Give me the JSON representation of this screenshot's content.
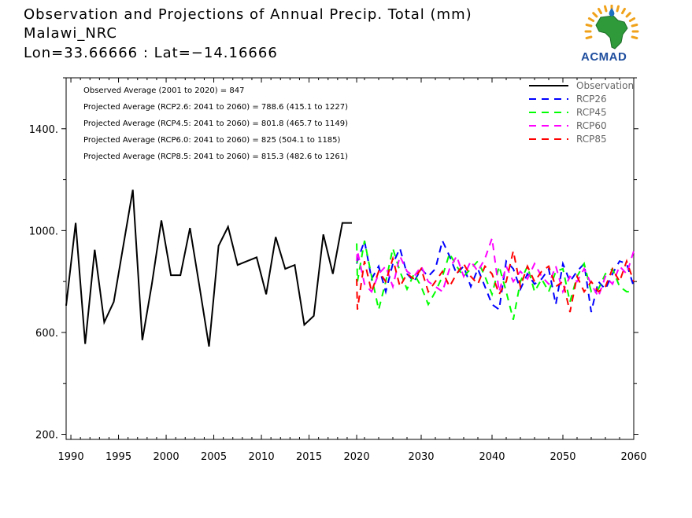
{
  "header": {
    "title": "Observation and Projections of Annual Precip. Total (mm)",
    "subtitle": "Malawi_NRC",
    "coords": "Lon=33.66666 : Lat=−14.16666",
    "logo_text": "ACMAD"
  },
  "chart_data": {
    "type": "line",
    "title": "Observation and Projections of Annual Precip. Total (mm)",
    "xlabel": "",
    "ylabel": "",
    "xlim": [
      1989.5,
      2060
    ],
    "ylim": [
      180,
      1600
    ],
    "yticks": [
      200,
      600,
      1000,
      1400
    ],
    "ytick_labels": [
      "200.",
      "600.",
      "1000.",
      "1400."
    ],
    "xticks_obs": [
      1990,
      1995,
      2000,
      2005,
      2010,
      2015,
      2020
    ],
    "xticks_proj": [
      2030,
      2040,
      2050,
      2060
    ],
    "legend_position": "top-right",
    "annotations": [
      "Observed Average (2001 to 2020) = 847",
      "Projected Average (RCP2.6: 2041 to 2060) = 788.6 (415.1 to 1227)",
      "Projected Average (RCP4.5: 2041 to 2060) = 801.8 (465.7 to 1149)",
      "Projected Average (RCP6.0: 2041 to 2060) = 825 (504.1 to 1185)",
      "Projected Average (RCP8.5: 2041 to 2060) = 815.3 (482.6 to 1261)"
    ],
    "series": [
      {
        "name": "Observation",
        "color": "#000000",
        "dashed": false,
        "x": [
          1989.5,
          1990.5,
          1991.5,
          1992.5,
          1993.5,
          1994.5,
          1995.5,
          1996.5,
          1997.5,
          1998.5,
          1999.5,
          2000.5,
          2001.5,
          2002.5,
          2003.5,
          2004.5,
          2005.5,
          2006.5,
          2007.5,
          2008.5,
          2009.5,
          2010.5,
          2011.5,
          2012.5,
          2013.5,
          2014.5,
          2015.5,
          2016.5,
          2017.5,
          2018.5,
          2019.5
        ],
        "y": [
          705,
          1030,
          555,
          925,
          640,
          720,
          940,
          1160,
          570,
          790,
          1040,
          825,
          825,
          1010,
          780,
          545,
          940,
          1015,
          865,
          880,
          895,
          750,
          975,
          850,
          865,
          630,
          665,
          985,
          830,
          1030,
          1030
        ]
      },
      {
        "name": "RCP26",
        "color": "#0000ff",
        "dashed": true,
        "x": [
          2020,
          2021,
          2022,
          2023,
          2024,
          2025,
          2026,
          2027,
          2028,
          2029,
          2030,
          2031,
          2032,
          2033,
          2034,
          2035,
          2036,
          2037,
          2038,
          2039,
          2040,
          2041,
          2042,
          2043,
          2044,
          2045,
          2046,
          2047,
          2048,
          2049,
          2050,
          2051,
          2052,
          2053,
          2054,
          2055,
          2056,
          2057,
          2058,
          2059,
          2060
        ],
        "y": [
          870,
          880,
          960,
          810,
          860,
          760,
          870,
          930,
          830,
          800,
          850,
          820,
          850,
          960,
          900,
          830,
          860,
          780,
          850,
          780,
          710,
          690,
          880,
          850,
          770,
          830,
          790,
          810,
          850,
          710,
          870,
          800,
          840,
          870,
          680,
          800,
          770,
          830,
          880,
          870,
          780
        ]
      },
      {
        "name": "RCP45",
        "color": "#00ff00",
        "dashed": true,
        "x": [
          2020,
          2021,
          2022,
          2023,
          2024,
          2025,
          2026,
          2027,
          2028,
          2029,
          2030,
          2031,
          2032,
          2033,
          2034,
          2035,
          2036,
          2037,
          2038,
          2039,
          2040,
          2041,
          2042,
          2043,
          2044,
          2045,
          2046,
          2047,
          2048,
          2049,
          2050,
          2051,
          2052,
          2053,
          2054,
          2055,
          2056,
          2057,
          2058,
          2059,
          2060
        ],
        "y": [
          950,
          800,
          960,
          820,
          690,
          800,
          930,
          840,
          770,
          830,
          780,
          710,
          760,
          820,
          910,
          860,
          820,
          850,
          880,
          820,
          750,
          860,
          760,
          650,
          800,
          860,
          760,
          810,
          760,
          840,
          850,
          720,
          820,
          870,
          760,
          770,
          830,
          850,
          780,
          760,
          760
        ]
      },
      {
        "name": "RCP60",
        "color": "#ff00ff",
        "dashed": true,
        "x": [
          2020,
          2021,
          2022,
          2023,
          2024,
          2025,
          2026,
          2027,
          2028,
          2029,
          2030,
          2031,
          2032,
          2033,
          2034,
          2035,
          2036,
          2037,
          2038,
          2039,
          2040,
          2041,
          2042,
          2043,
          2044,
          2045,
          2046,
          2047,
          2048,
          2049,
          2050,
          2051,
          2052,
          2053,
          2054,
          2055,
          2056,
          2057,
          2058,
          2059,
          2060
        ],
        "y": [
          880,
          920,
          790,
          760,
          830,
          860,
          780,
          900,
          840,
          820,
          860,
          800,
          780,
          760,
          850,
          900,
          820,
          880,
          840,
          890,
          970,
          760,
          860,
          800,
          840,
          810,
          870,
          820,
          790,
          860,
          760,
          820,
          800,
          850,
          790,
          740,
          820,
          790,
          860,
          830,
          920
        ]
      },
      {
        "name": "RCP85",
        "color": "#ff0000",
        "dashed": true,
        "x": [
          2020,
          2021,
          2022,
          2023,
          2024,
          2025,
          2026,
          2027,
          2028,
          2029,
          2030,
          2031,
          2032,
          2033,
          2034,
          2035,
          2036,
          2037,
          2038,
          2039,
          2040,
          2041,
          2042,
          2043,
          2044,
          2045,
          2046,
          2047,
          2048,
          2049,
          2050,
          2051,
          2052,
          2053,
          2054,
          2055,
          2056,
          2057,
          2058,
          2059,
          2060
        ],
        "y": [
          810,
          690,
          880,
          760,
          840,
          800,
          890,
          780,
          830,
          810,
          850,
          760,
          800,
          840,
          780,
          830,
          870,
          820,
          790,
          860,
          830,
          750,
          800,
          920,
          780,
          860,
          800,
          840,
          860,
          780,
          800,
          680,
          820,
          760,
          800,
          760,
          780,
          850,
          800,
          880,
          800
        ]
      }
    ]
  }
}
